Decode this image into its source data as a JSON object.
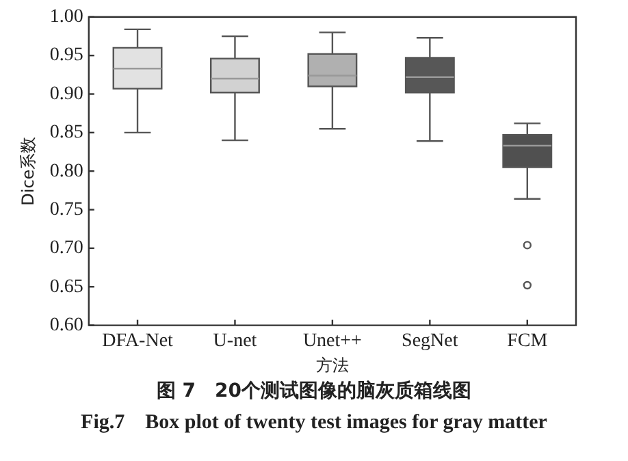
{
  "chart_data": {
    "type": "box",
    "title": "图 7　20个测试图像的脑灰质箱线图",
    "subtitle": "Fig.7　Box plot of twenty test images for gray matter",
    "xlabel": "方法",
    "ylabel": "Dice系数",
    "categories": [
      "DFA-Net",
      "U-net",
      "Unet++",
      "SegNet",
      "FCM"
    ],
    "colors": [
      "#e2e2e2",
      "#d2d2d2",
      "#b0b0b0",
      "#575757",
      "#505050"
    ],
    "boxes": [
      {
        "low": 0.85,
        "q1": 0.907,
        "median": 0.933,
        "q3": 0.96,
        "high": 0.984
      },
      {
        "low": 0.84,
        "q1": 0.902,
        "median": 0.92,
        "q3": 0.946,
        "high": 0.975
      },
      {
        "low": 0.855,
        "q1": 0.91,
        "median": 0.924,
        "q3": 0.952,
        "high": 0.98
      },
      {
        "low": 0.839,
        "q1": 0.902,
        "median": 0.922,
        "q3": 0.947,
        "high": 0.973
      },
      {
        "low": 0.764,
        "q1": 0.805,
        "median": 0.833,
        "q3": 0.847,
        "high": 0.862,
        "outliers": [
          0.704,
          0.652
        ]
      }
    ],
    "ylim": [
      0.6,
      1.0
    ],
    "yticks": [
      {
        "value": 0.6,
        "label": "0.60"
      },
      {
        "value": 0.65,
        "label": "0.65"
      },
      {
        "value": 0.7,
        "label": "0.70"
      },
      {
        "value": 0.75,
        "label": "0.75"
      },
      {
        "value": 0.8,
        "label": "0.80"
      },
      {
        "value": 0.85,
        "label": "0.85"
      },
      {
        "value": 0.9,
        "label": "0.90"
      },
      {
        "value": 0.95,
        "label": "0.95"
      },
      {
        "value": 1.0,
        "label": "1.00"
      }
    ],
    "grid": false,
    "legend": false
  }
}
